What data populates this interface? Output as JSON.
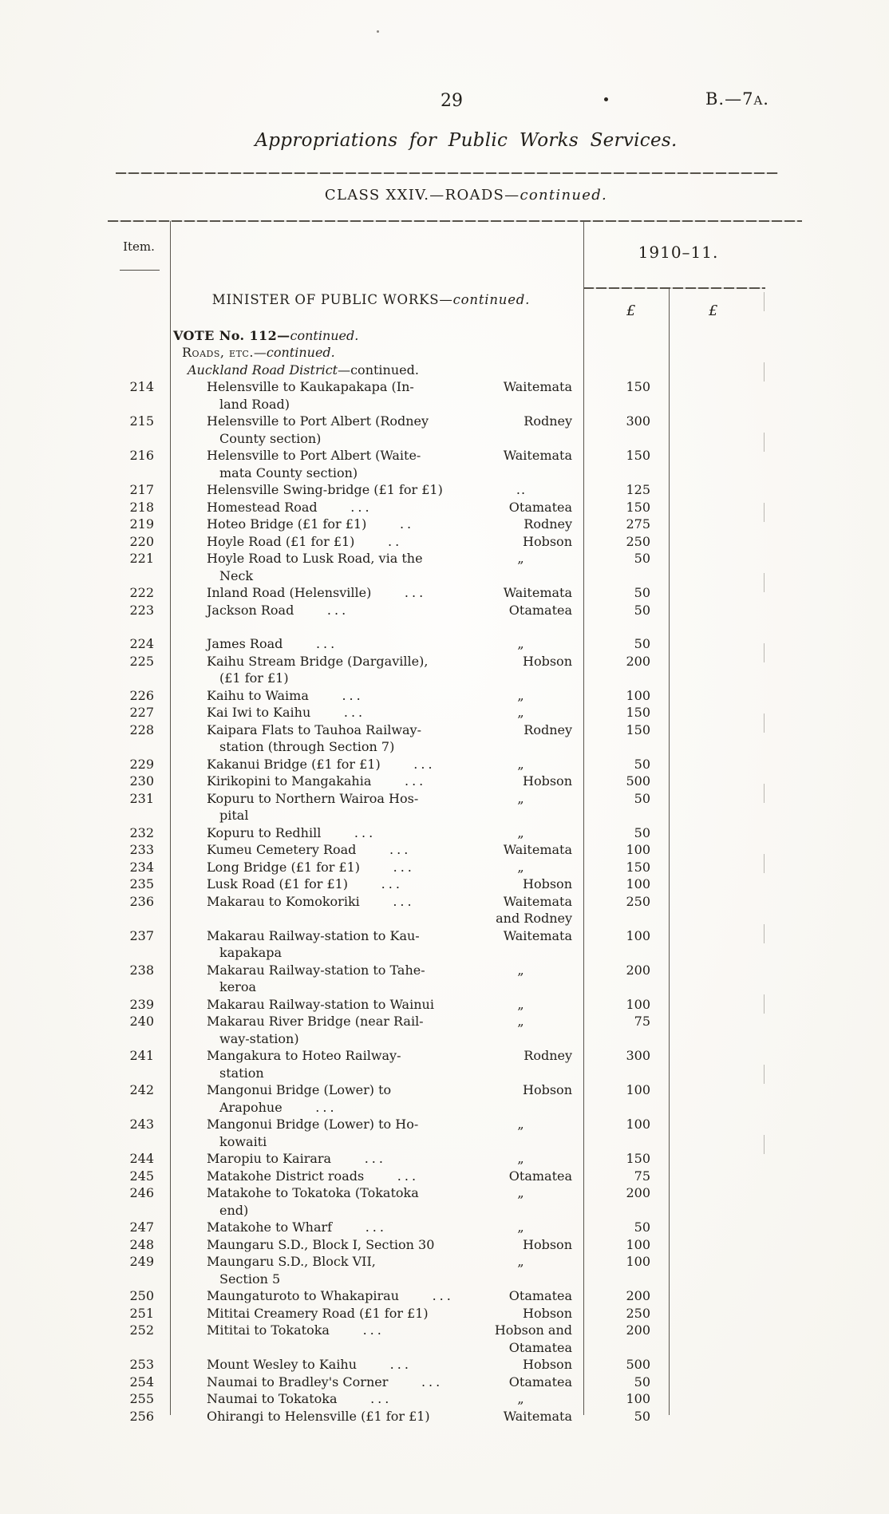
{
  "page": {
    "page_number": "29",
    "doc_ref": "B.—7a.",
    "title": "Appropriations for Public Works Services.",
    "class_heading": {
      "main": "CLASS XXIV.—ROADS—",
      "continued": "continued."
    }
  },
  "table": {
    "header": {
      "item_label": "Item.",
      "year_label": "1910–11.",
      "pound_left": "£",
      "pound_right": "£"
    },
    "section_headings": {
      "minister": {
        "main": "MINISTER OF PUBLIC WORKS—",
        "continued": "continued."
      },
      "vote": {
        "main": "VOTE No. 112—",
        "continued": "continued."
      },
      "roads": {
        "main": "Roads, etc.",
        "continued": "—continued."
      },
      "district_group": {
        "main": "Auckland Road District",
        "continued": "—continued."
      }
    },
    "rows": [
      {
        "item": "214",
        "particulars": "Helensville to Kaukapakapa (In-\nland Road)",
        "dots": "",
        "district": "Waitemata",
        "amount": "150"
      },
      {
        "item": "215",
        "particulars": "Helensville to Port Albert (Rodney\nCounty section)",
        "dots": "",
        "district": "Rodney",
        "amount": "300"
      },
      {
        "item": "216",
        "particulars": "Helensville to Port Albert (Waite-\nmata County section)",
        "dots": "",
        "district": "Waitemata",
        "amount": "150"
      },
      {
        "item": "217",
        "particulars": "Helensville Swing-bridge (£1 for £1)",
        "dots": "",
        "district": "..",
        "amount": "125"
      },
      {
        "item": "218",
        "particulars": "Homestead Road",
        "dots": "...",
        "district": "Otamatea",
        "amount": "150"
      },
      {
        "item": "219",
        "particulars": "Hoteo Bridge (£1 for £1)",
        "dots": "..",
        "district": "Rodney",
        "amount": "275"
      },
      {
        "item": "220",
        "particulars": "Hoyle Road (£1 for £1)",
        "dots": "..",
        "district": "Hobson",
        "amount": "250"
      },
      {
        "item": "221",
        "particulars": "Hoyle Road to Lusk Road, via the\nNeck",
        "dots": "",
        "district": "„",
        "amount": "50"
      },
      {
        "item": "222",
        "particulars": "Inland Road (Helensville)",
        "dots": "...",
        "district": "Waitemata",
        "amount": "50"
      },
      {
        "item": "223",
        "particulars": "Jackson Road",
        "dots": "...",
        "district": "Otamatea",
        "amount": "50"
      },
      {
        "item": "224",
        "particulars": "James Road",
        "dots": "...",
        "district": "„",
        "amount": "50",
        "gap_before": true
      },
      {
        "item": "225",
        "particulars": "Kaihu Stream Bridge (Dargaville),\n(£1 for £1)",
        "dots": "",
        "district": "Hobson",
        "amount": "200"
      },
      {
        "item": "226",
        "particulars": "Kaihu to Waima",
        "dots": "...",
        "district": "„",
        "amount": "100"
      },
      {
        "item": "227",
        "particulars": "Kai Iwi to Kaihu",
        "dots": "...",
        "district": "„",
        "amount": "150"
      },
      {
        "item": "228",
        "particulars": "Kaipara Flats to Tauhoa Railway-\nstation (through Section 7)",
        "dots": "",
        "district": "Rodney",
        "amount": "150"
      },
      {
        "item": "229",
        "particulars": "Kakanui Bridge (£1 for £1)",
        "dots": "...",
        "district": "„",
        "amount": "50"
      },
      {
        "item": "230",
        "particulars": "Kirikopini to Mangakahia",
        "dots": "...",
        "district": "Hobson",
        "amount": "500"
      },
      {
        "item": "231",
        "particulars": "Kopuru to Northern Wairoa Hos-\npital",
        "dots": "",
        "district": "„",
        "amount": "50"
      },
      {
        "item": "232",
        "particulars": "Kopuru to Redhill",
        "dots": "...",
        "district": "„",
        "amount": "50"
      },
      {
        "item": "233",
        "particulars": "Kumeu Cemetery Road",
        "dots": "...",
        "district": "Waitemata",
        "amount": "100"
      },
      {
        "item": "234",
        "particulars": "Long Bridge (£1 for £1)",
        "dots": "...",
        "district": "„",
        "amount": "150"
      },
      {
        "item": "235",
        "particulars": "Lusk Road (£1 for £1)",
        "dots": "...",
        "district": "Hobson",
        "amount": "100"
      },
      {
        "item": "236",
        "particulars": "Makarau to Komokoriki",
        "dots": "...",
        "district": "Waitemata\nand Rodney",
        "amount": "250"
      },
      {
        "item": "237",
        "particulars": "Makarau Railway-station to Kau-\nkapakapa",
        "dots": "",
        "district": "Waitemata",
        "amount": "100"
      },
      {
        "item": "238",
        "particulars": "Makarau Railway-station to Tahe-\nkeroa",
        "dots": "",
        "district": "„",
        "amount": "200"
      },
      {
        "item": "239",
        "particulars": "Makarau Railway-station to Wainui",
        "dots": "",
        "district": "„",
        "amount": "100"
      },
      {
        "item": "240",
        "particulars": "Makarau River Bridge (near Rail-\nway-station)",
        "dots": "",
        "district": "„",
        "amount": "75"
      },
      {
        "item": "241",
        "particulars": "Mangakura to Hoteo Railway-\nstation",
        "dots": "",
        "district": "Rodney",
        "amount": "300"
      },
      {
        "item": "242",
        "particulars": "Mangonui Bridge (Lower) to\nArapohue",
        "dots": "...",
        "district": "Hobson",
        "amount": "100"
      },
      {
        "item": "243",
        "particulars": "Mangonui Bridge (Lower) to Ho-\nkowaiti",
        "dots": "",
        "district": "„",
        "amount": "100"
      },
      {
        "item": "244",
        "particulars": "Maropiu to Kairara",
        "dots": "...",
        "district": "„",
        "amount": "150"
      },
      {
        "item": "245",
        "particulars": "Matakohe District roads",
        "dots": "...",
        "district": "Otamatea",
        "amount": "75"
      },
      {
        "item": "246",
        "particulars": "Matakohe to Tokatoka (Tokatoka\nend)",
        "dots": "",
        "district": "„",
        "amount": "200"
      },
      {
        "item": "247",
        "particulars": "Matakohe to Wharf",
        "dots": "...",
        "district": "„",
        "amount": "50"
      },
      {
        "item": "248",
        "particulars": "Maungaru S.D., Block I, Section 30",
        "dots": "",
        "district": "Hobson",
        "amount": "100"
      },
      {
        "item": "249",
        "particulars": "Maungaru S.D., Block VII,\nSection 5",
        "dots": "",
        "district": "„",
        "amount": "100"
      },
      {
        "item": "250",
        "particulars": "Maungaturoto to Whakapirau",
        "dots": "...",
        "district": "Otamatea",
        "amount": "200"
      },
      {
        "item": "251",
        "particulars": "Mititai Creamery Road (£1 for £1)",
        "dots": "",
        "district": "Hobson",
        "amount": "250"
      },
      {
        "item": "252",
        "particulars": "Mititai to Tokatoka",
        "dots": "...",
        "district": "Hobson and\nOtamatea",
        "amount": "200"
      },
      {
        "item": "253",
        "particulars": "Mount Wesley to Kaihu",
        "dots": "...",
        "district": "Hobson",
        "amount": "500"
      },
      {
        "item": "254",
        "particulars": "Naumai to Bradley's Corner",
        "dots": "...",
        "district": "Otamatea",
        "amount": "50"
      },
      {
        "item": "255",
        "particulars": "Naumai to Tokatoka",
        "dots": "...",
        "district": "„",
        "amount": "100"
      },
      {
        "item": "256",
        "particulars": "Ohirangi to Helensville (£1 for £1)",
        "dots": "",
        "district": "Waitemata",
        "amount": "50"
      }
    ]
  }
}
